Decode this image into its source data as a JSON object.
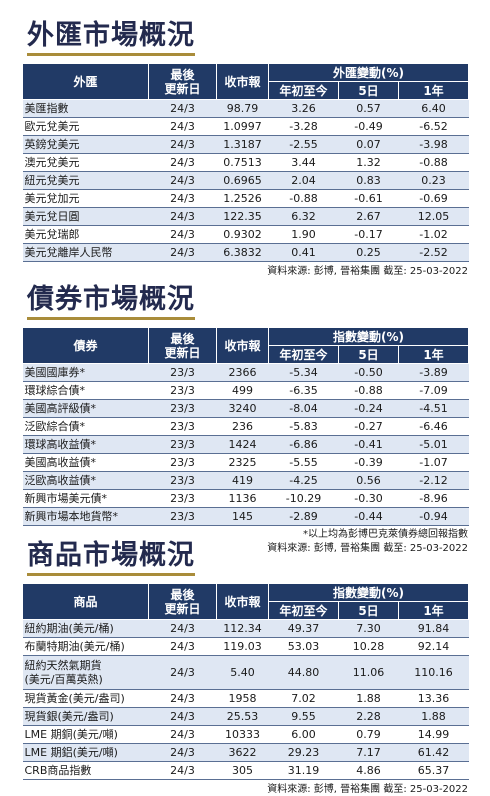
{
  "fx": {
    "title": "外匯市場概況",
    "headers": {
      "name": "外匯",
      "date": "最後\n更新日",
      "close": "收市報",
      "group": "外匯變動(%)",
      "ytd": "年初至今",
      "d5": "5日",
      "y1": "1年"
    },
    "rows": [
      {
        "name": "美匯指數",
        "date": "24/3",
        "close": "98.79",
        "ytd": "3.26",
        "d5": "0.57",
        "y1": "6.40"
      },
      {
        "name": "歐元兌美元",
        "date": "24/3",
        "close": "1.0997",
        "ytd": "-3.28",
        "d5": "-0.49",
        "y1": "-6.52"
      },
      {
        "name": "英鎊兌美元",
        "date": "24/3",
        "close": "1.3187",
        "ytd": "-2.55",
        "d5": "0.07",
        "y1": "-3.98"
      },
      {
        "name": "澳元兌美元",
        "date": "24/3",
        "close": "0.7513",
        "ytd": "3.44",
        "d5": "1.32",
        "y1": "-0.88"
      },
      {
        "name": "紐元兌美元",
        "date": "24/3",
        "close": "0.6965",
        "ytd": "2.04",
        "d5": "0.83",
        "y1": "0.23"
      },
      {
        "name": "美元兌加元",
        "date": "24/3",
        "close": "1.2526",
        "ytd": "-0.88",
        "d5": "-0.61",
        "y1": "-0.69"
      },
      {
        "name": "美元兌日圓",
        "date": "24/3",
        "close": "122.35",
        "ytd": "6.32",
        "d5": "2.67",
        "y1": "12.05"
      },
      {
        "name": "美元兌瑞郎",
        "date": "24/3",
        "close": "0.9302",
        "ytd": "1.90",
        "d5": "-0.17",
        "y1": "-1.02"
      },
      {
        "name": "美元兌離岸人民幣",
        "date": "24/3",
        "close": "6.3832",
        "ytd": "0.41",
        "d5": "0.25",
        "y1": "-2.52"
      }
    ],
    "source": "資料來源: 彭博, 晉裕集團 截至: 25-03-2022"
  },
  "bond": {
    "title": "債券市場概況",
    "headers": {
      "name": "債券",
      "date": "最後\n更新日",
      "close": "收市報",
      "group": "指數變動(%)",
      "ytd": "年初至今",
      "d5": "5日",
      "y1": "1年"
    },
    "rows": [
      {
        "name": "美國國庫券*",
        "date": "23/3",
        "close": "2366",
        "ytd": "-5.34",
        "d5": "-0.50",
        "y1": "-3.89"
      },
      {
        "name": "環球綜合債*",
        "date": "23/3",
        "close": "499",
        "ytd": "-6.35",
        "d5": "-0.88",
        "y1": "-7.09"
      },
      {
        "name": "美國高評級債*",
        "date": "23/3",
        "close": "3240",
        "ytd": "-8.04",
        "d5": "-0.24",
        "y1": "-4.51"
      },
      {
        "name": "泛歐綜合債*",
        "date": "23/3",
        "close": "236",
        "ytd": "-5.83",
        "d5": "-0.27",
        "y1": "-6.46"
      },
      {
        "name": "環球高收益債*",
        "date": "23/3",
        "close": "1424",
        "ytd": "-6.86",
        "d5": "-0.41",
        "y1": "-5.01"
      },
      {
        "name": "美國高收益債*",
        "date": "23/3",
        "close": "2325",
        "ytd": "-5.55",
        "d5": "-0.39",
        "y1": "-1.07"
      },
      {
        "name": "泛歐高收益債*",
        "date": "23/3",
        "close": "419",
        "ytd": "-4.25",
        "d5": "0.56",
        "y1": "-2.12"
      },
      {
        "name": "新興市場美元債*",
        "date": "23/3",
        "close": "1136",
        "ytd": "-10.29",
        "d5": "-0.30",
        "y1": "-8.96"
      },
      {
        "name": "新興市場本地貨幣*",
        "date": "23/3",
        "close": "145",
        "ytd": "-2.89",
        "d5": "-0.44",
        "y1": "-0.94"
      }
    ],
    "note": "*以上均為彭博巴克萊債券總回報指數",
    "source": "資料來源: 彭博, 晉裕集團 截至: 25-03-2022"
  },
  "commodity": {
    "title": "商品市場概況",
    "headers": {
      "name": "商品",
      "date": "最後\n更新日",
      "close": "收市報",
      "group": "指數變動(%)",
      "ytd": "年初至今",
      "d5": "5日",
      "y1": "1年"
    },
    "rows": [
      {
        "name": "紐約期油(美元/桶)",
        "date": "24/3",
        "close": "112.34",
        "ytd": "49.37",
        "d5": "7.30",
        "y1": "91.84"
      },
      {
        "name": "布蘭特期油(美元/桶)",
        "date": "24/3",
        "close": "119.03",
        "ytd": "53.03",
        "d5": "10.28",
        "y1": "92.14"
      },
      {
        "name": "紐約天然氣期貨\n(美元/百萬英熱)",
        "date": "24/3",
        "close": "5.40",
        "ytd": "44.80",
        "d5": "11.06",
        "y1": "110.16",
        "tall": true
      },
      {
        "name": "現貨黃金(美元/盎司)",
        "date": "24/3",
        "close": "1958",
        "ytd": "7.02",
        "d5": "1.88",
        "y1": "13.36"
      },
      {
        "name": "現貨銀(美元/盎司)",
        "date": "24/3",
        "close": "25.53",
        "ytd": "9.55",
        "d5": "2.28",
        "y1": "1.88"
      },
      {
        "name": "LME 期銅(美元/噸)",
        "date": "24/3",
        "close": "10333",
        "ytd": "6.00",
        "d5": "0.79",
        "y1": "14.99"
      },
      {
        "name": "LME 期鋁(美元/噸)",
        "date": "24/3",
        "close": "3622",
        "ytd": "29.23",
        "d5": "7.17",
        "y1": "61.42"
      },
      {
        "name": "CRB商品指數",
        "date": "24/3",
        "close": "305",
        "ytd": "31.19",
        "d5": "4.86",
        "y1": "65.37"
      }
    ],
    "source": "資料來源: 彭博, 晉裕集團 截至: 25-03-2022"
  }
}
